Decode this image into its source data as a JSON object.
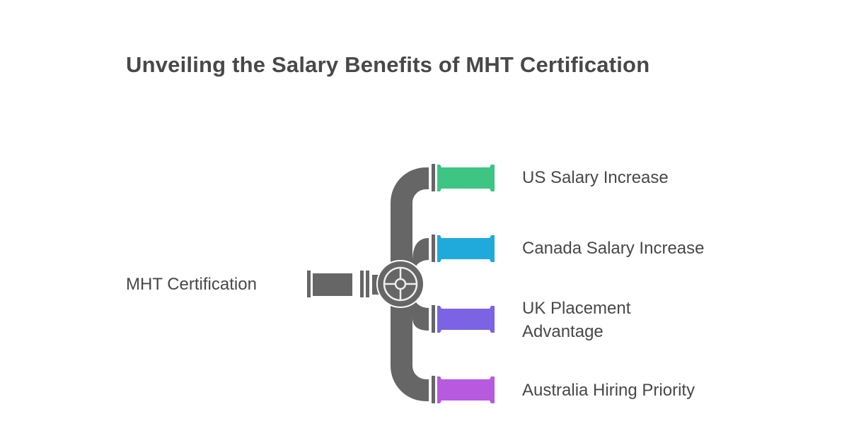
{
  "title": "Unveiling the Salary Benefits of MHT Certification",
  "source": {
    "label": "MHT Certification"
  },
  "branches": [
    {
      "label": "US Salary Increase",
      "color": "#3ec583"
    },
    {
      "label": "Canada Salary Increase",
      "color": "#20aadb"
    },
    {
      "label": "UK Placement Advantage",
      "color": "#7b63e3"
    },
    {
      "label": "Australia Hiring Priority",
      "color": "#b75ae0"
    }
  ],
  "pipe_color": "#666666"
}
